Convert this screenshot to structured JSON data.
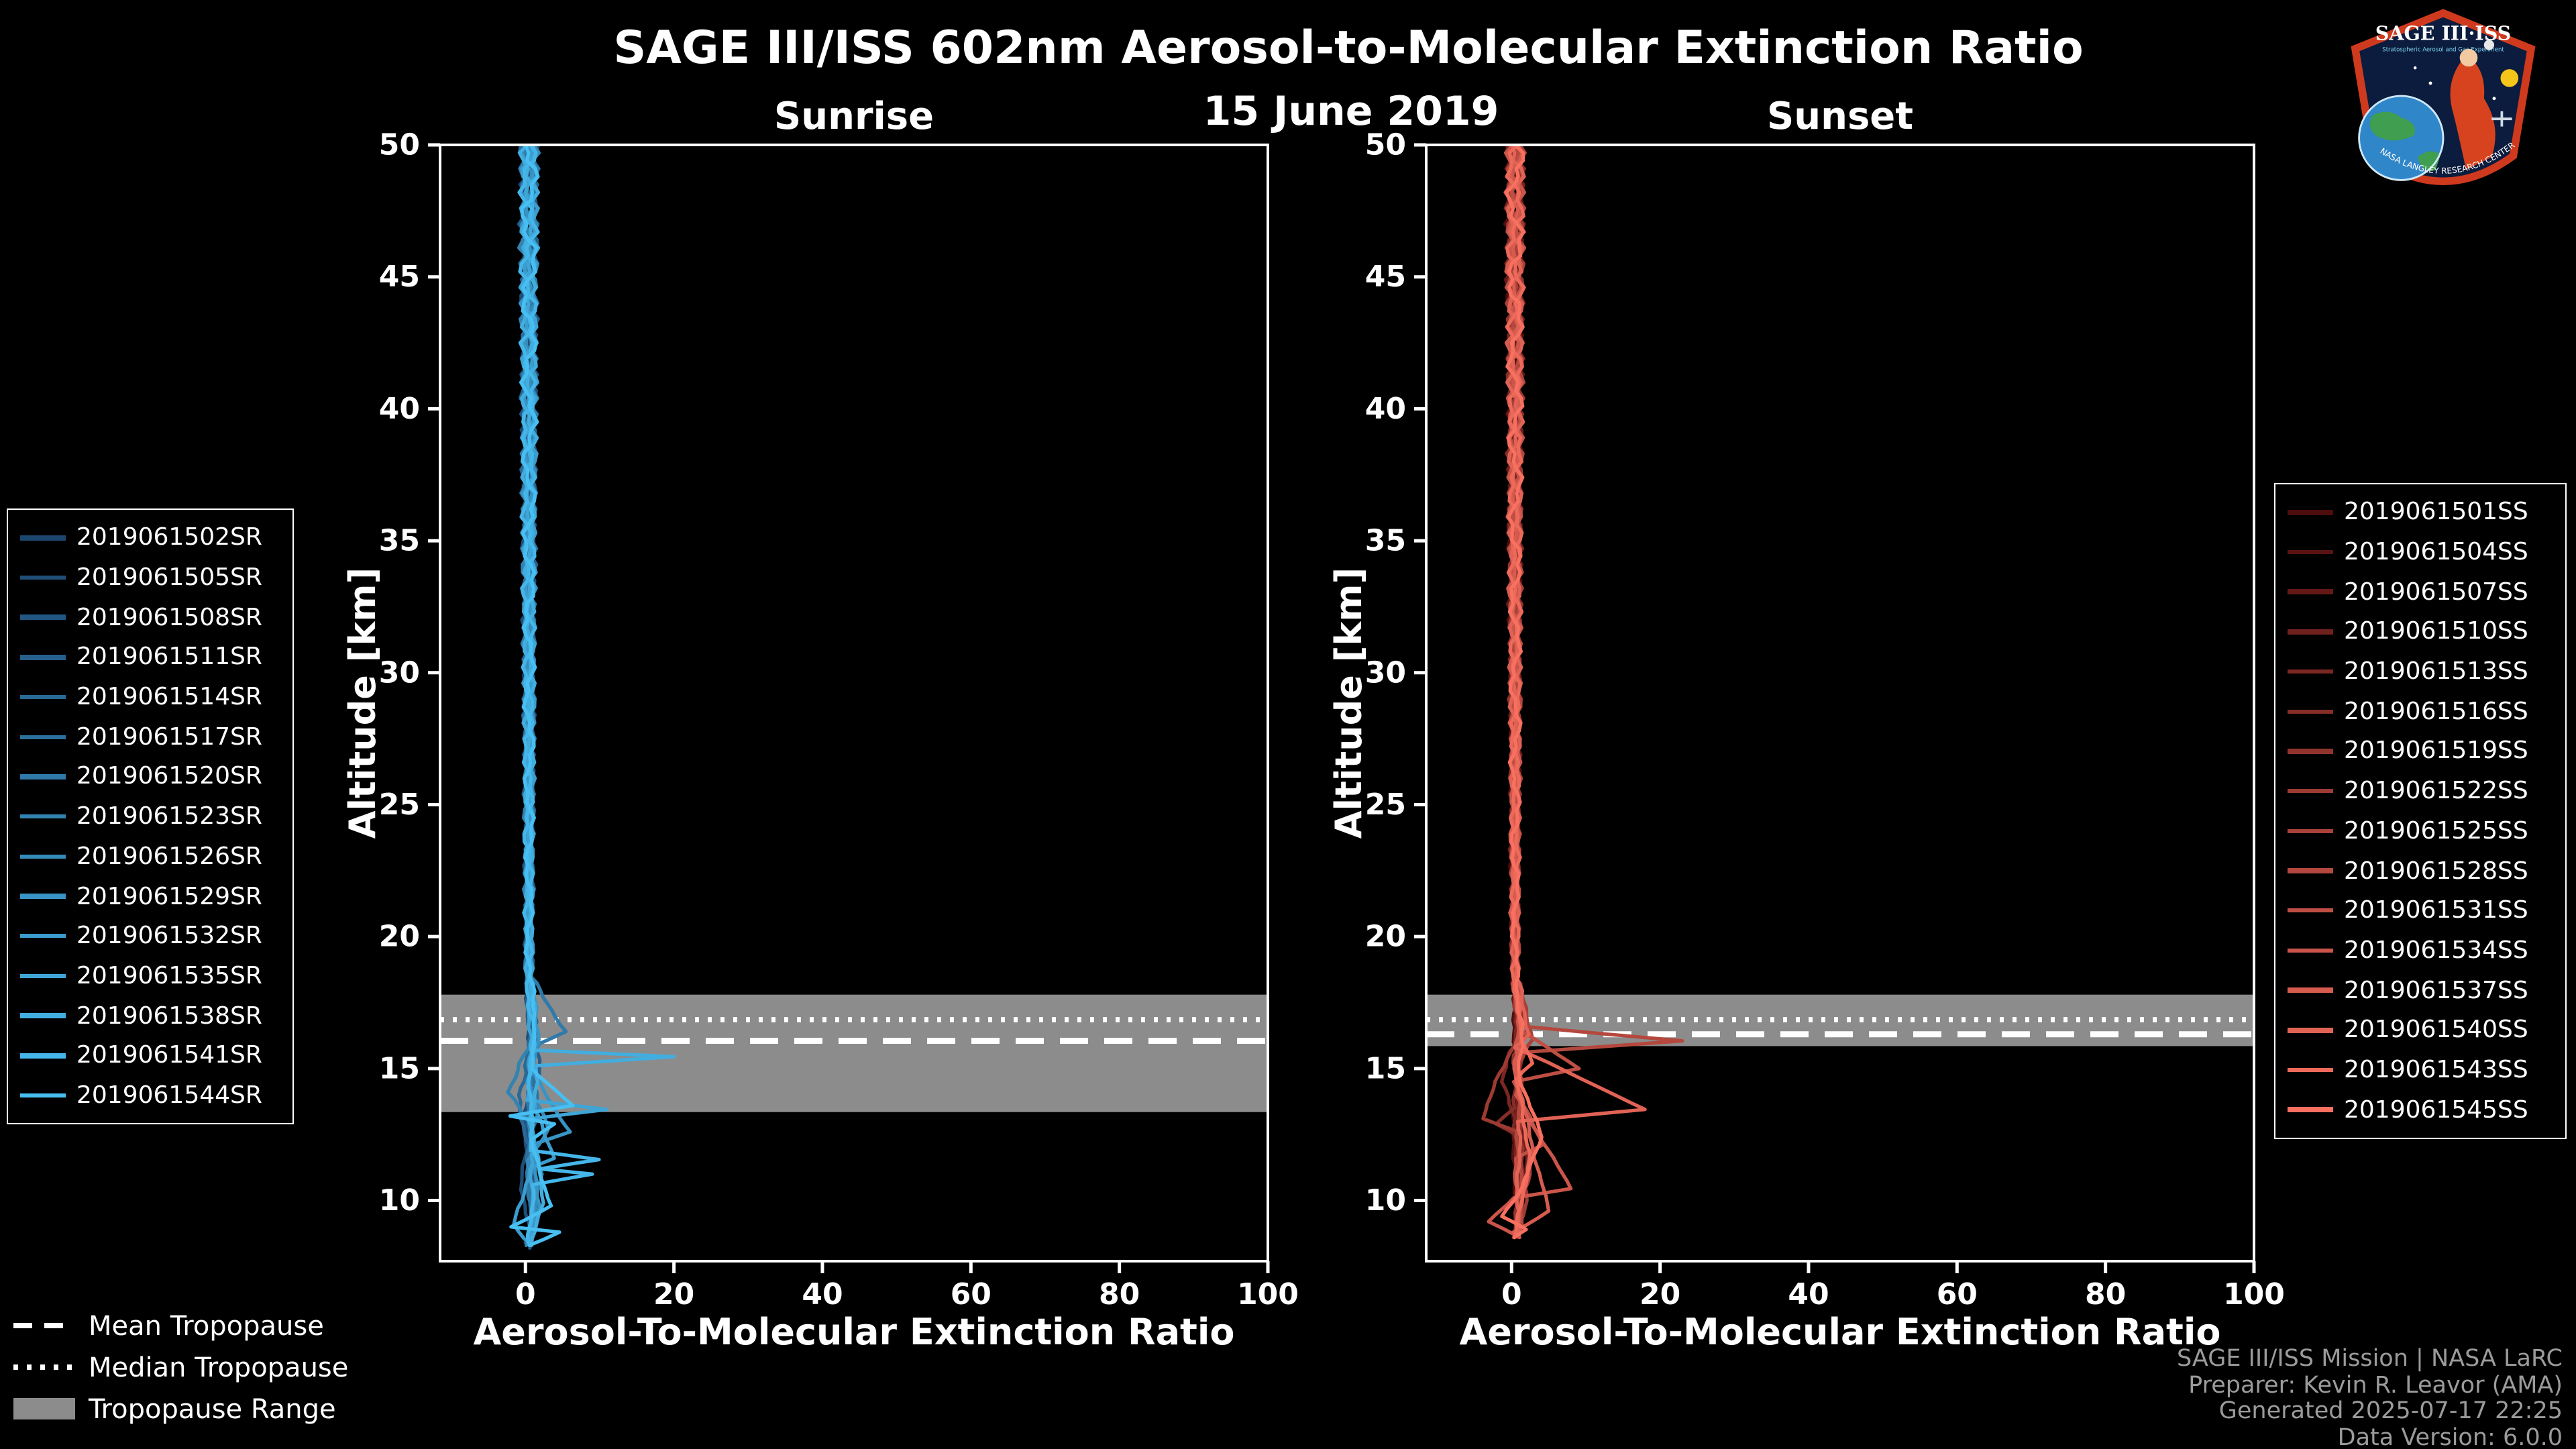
{
  "header": {
    "title": "SAGE III/ISS 602nm Aerosol-to-Molecular Extinction Ratio",
    "date": "15 June 2019"
  },
  "logo": {
    "title": "SAGE III·ISS",
    "subtitle": "Stratospheric Aerosol and Gas Experiment",
    "arc_text": "NASA LANGLEY RESEARCH CENTER"
  },
  "tropopause_legend": {
    "mean": "Mean Tropopause",
    "median": "Median Tropopause",
    "range": "Tropopause Range"
  },
  "credits": {
    "lines": [
      "SAGE III/ISS Mission | NASA LaRC",
      "Preparer: Kevin R. Leavor (AMA)",
      "Generated 2025-07-17 22:25",
      "Data Version: 6.0.0"
    ]
  },
  "chart_data": [
    {
      "type": "line",
      "title": "Sunrise",
      "xlabel": "Aerosol-To-Molecular Extinction Ratio",
      "ylabel": "Altitude [km]",
      "xlim": [
        -11.5,
        100
      ],
      "ylim": [
        7.7,
        50
      ],
      "xticks": [
        0,
        20,
        40,
        60,
        80,
        100
      ],
      "yticks": [
        10,
        15,
        20,
        25,
        30,
        35,
        40,
        45,
        50
      ],
      "grid": false,
      "legend_position": "outside-left",
      "tropopause": {
        "mean": 16.05,
        "median": 16.85,
        "range": [
          13.35,
          17.8
        ],
        "band_color": "#8c8c8c",
        "line_color": "#ffffff"
      },
      "series": [
        {
          "name": "2019061502SR",
          "color": "#1C4670",
          "base": 0.5,
          "points": [
            [
              0.6,
              16.0
            ],
            [
              0.4,
              12.0
            ],
            [
              0.8,
              8.4
            ]
          ]
        },
        {
          "name": "2019061505SR",
          "color": "#1F4F79",
          "base": 0.4,
          "points": [
            [
              0.8,
              15.0
            ],
            [
              -0.5,
              11.0
            ],
            [
              0.6,
              8.3
            ]
          ]
        },
        {
          "name": "2019061508SR",
          "color": "#225783",
          "base": 0.5,
          "points": [
            [
              1.2,
              16.5
            ],
            [
              0.3,
              13.0
            ],
            [
              1.5,
              9.0
            ],
            [
              0.5,
              8.2
            ]
          ]
        },
        {
          "name": "2019061511SR",
          "color": "#25608C",
          "base": 0.6,
          "points": [
            [
              0.5,
              17.0
            ],
            [
              2.0,
              14.8
            ],
            [
              0.5,
              13.5
            ],
            [
              1.0,
              10.0
            ],
            [
              0.2,
              8.4
            ]
          ]
        },
        {
          "name": "2019061514SR",
          "color": "#296995",
          "base": 0.4,
          "points": [
            [
              1.0,
              16.2
            ],
            [
              -1.0,
              14.0
            ],
            [
              0.5,
              12.0
            ],
            [
              2.0,
              9.5
            ],
            [
              0.4,
              8.3
            ]
          ]
        },
        {
          "name": "2019061517SR",
          "color": "#2C719E",
          "base": 0.5,
          "points": [
            [
              0.8,
              16.8
            ],
            [
              1.5,
              13.8
            ],
            [
              0.2,
              11.0
            ],
            [
              1.0,
              8.5
            ]
          ]
        },
        {
          "name": "2019061520SR",
          "color": "#2F7AA8",
          "base": 0.5,
          "points": [
            [
              5.5,
              16.4
            ],
            [
              0.8,
              15.8
            ],
            [
              0.4,
              12.0
            ],
            [
              0.8,
              8.4
            ]
          ]
        },
        {
          "name": "2019061523SR",
          "color": "#3283B1",
          "base": 0.4,
          "points": [
            [
              1.0,
              16.0
            ],
            [
              -2.5,
              14.1
            ],
            [
              0.5,
              13.0
            ],
            [
              2.0,
              11.0
            ],
            [
              0.5,
              8.3
            ]
          ]
        },
        {
          "name": "2019061526SR",
          "color": "#358BBA",
          "base": 0.5,
          "points": [
            [
              1.5,
              15.9
            ],
            [
              0.6,
              14.5
            ],
            [
              3.0,
              12.7
            ],
            [
              0.5,
              11.5
            ],
            [
              1.5,
              9.2
            ],
            [
              0.3,
              8.3
            ]
          ]
        },
        {
          "name": "2019061529SR",
          "color": "#3894C4",
          "base": 0.5,
          "points": [
            [
              2.0,
              16.1
            ],
            [
              0.5,
              15.0
            ],
            [
              6.0,
              12.6
            ],
            [
              0.8,
              12.1
            ],
            [
              2.0,
              9.7
            ],
            [
              0.2,
              8.4
            ]
          ]
        },
        {
          "name": "2019061532SR",
          "color": "#3B9CCD",
          "base": 0.6,
          "points": [
            [
              1.0,
              16.3
            ],
            [
              0.5,
              14.0
            ],
            [
              4.0,
              11.6
            ],
            [
              0.5,
              11.2
            ],
            [
              -1.5,
              9.1
            ],
            [
              0.8,
              8.3
            ]
          ]
        },
        {
          "name": "2019061535SR",
          "color": "#3FA5D6",
          "base": 0.5,
          "points": [
            [
              0.8,
              16.0
            ],
            [
              0.6,
              13.8
            ],
            [
              11.0,
              13.45
            ],
            [
              0.8,
              13.1
            ],
            [
              1.0,
              10.0
            ],
            [
              0.4,
              8.4
            ]
          ]
        },
        {
          "name": "2019061538SR",
          "color": "#42AEDF",
          "base": 0.5,
          "points": [
            [
              1.2,
              16.4
            ],
            [
              1.0,
              15.7
            ],
            [
              20.0,
              15.45
            ],
            [
              1.5,
              15.1
            ],
            [
              0.8,
              13.0
            ],
            [
              2.5,
              9.9
            ],
            [
              0.5,
              8.3
            ]
          ]
        },
        {
          "name": "2019061541SR",
          "color": "#45B6E9",
          "base": 0.4,
          "points": [
            [
              1.0,
              16.2
            ],
            [
              0.6,
              14.0
            ],
            [
              0.8,
              11.9
            ],
            [
              10.0,
              11.55
            ],
            [
              2.0,
              11.2
            ],
            [
              9.0,
              11.0
            ],
            [
              1.0,
              10.6
            ],
            [
              0.5,
              8.4
            ]
          ]
        },
        {
          "name": "2019061544SR",
          "color": "#48BFF2",
          "base": 0.5,
          "points": [
            [
              1.5,
              16.5
            ],
            [
              0.5,
              15.0
            ],
            [
              6.5,
              13.6
            ],
            [
              -2.0,
              13.2
            ],
            [
              4.0,
              12.9
            ],
            [
              0.5,
              12.3
            ],
            [
              3.5,
              9.8
            ],
            [
              -2.0,
              9.0
            ],
            [
              4.5,
              8.8
            ],
            [
              0.5,
              8.3
            ]
          ]
        }
      ]
    },
    {
      "type": "line",
      "title": "Sunset",
      "xlabel": "Aerosol-To-Molecular Extinction Ratio",
      "ylabel": "Altitude [km]",
      "xlim": [
        -11.5,
        100
      ],
      "ylim": [
        7.7,
        50
      ],
      "xticks": [
        0,
        20,
        40,
        60,
        80,
        100
      ],
      "yticks": [
        10,
        15,
        20,
        25,
        30,
        35,
        40,
        45,
        50
      ],
      "grid": false,
      "legend_position": "outside-right",
      "tropopause": {
        "mean": 16.3,
        "median": 16.85,
        "range": [
          15.85,
          17.8
        ],
        "band_color": "#8c8c8c",
        "line_color": "#ffffff"
      },
      "series": [
        {
          "name": "2019061501SS",
          "color": "#4E0C0C",
          "base": 0.4,
          "points": [
            [
              0.6,
              16.0
            ],
            [
              0.5,
              12.0
            ],
            [
              0.8,
              8.6
            ]
          ]
        },
        {
          "name": "2019061504SS",
          "color": "#591312",
          "base": 0.5,
          "points": [
            [
              1.0,
              15.5
            ],
            [
              0.3,
              11.0
            ],
            [
              1.2,
              8.8
            ]
          ]
        },
        {
          "name": "2019061507SS",
          "color": "#651917",
          "base": 0.4,
          "points": [
            [
              0.8,
              16.5
            ],
            [
              1.5,
              13.0
            ],
            [
              0.5,
              10.0
            ],
            [
              0.8,
              8.6
            ]
          ]
        },
        {
          "name": "2019061510SS",
          "color": "#70201D",
          "base": 0.5,
          "points": [
            [
              1.5,
              16.8
            ],
            [
              0.5,
              14.0
            ],
            [
              2.0,
              11.5
            ],
            [
              0.4,
              8.7
            ]
          ]
        },
        {
          "name": "2019061513SS",
          "color": "#7B2722",
          "base": 0.5,
          "points": [
            [
              0.8,
              17.0
            ],
            [
              -1.0,
              14.5
            ],
            [
              0.8,
              12.0
            ],
            [
              1.5,
              9.5
            ],
            [
              0.5,
              8.6
            ]
          ]
        },
        {
          "name": "2019061516SS",
          "color": "#872D28",
          "base": 0.4,
          "points": [
            [
              1.2,
              16.2
            ],
            [
              0.5,
              13.5
            ],
            [
              -2.0,
              12.9
            ],
            [
              0.8,
              12.4
            ],
            [
              1.0,
              8.8
            ]
          ]
        },
        {
          "name": "2019061519SS",
          "color": "#92342E",
          "base": 0.5,
          "points": [
            [
              2.0,
              16.3
            ],
            [
              0.5,
              15.5
            ],
            [
              1.5,
              12.0
            ],
            [
              0.5,
              8.7
            ]
          ]
        },
        {
          "name": "2019061522SS",
          "color": "#9D3B33",
          "base": 0.5,
          "points": [
            [
              1.0,
              16.5
            ],
            [
              -4.0,
              13.1
            ],
            [
              0.8,
              12.6
            ],
            [
              2.0,
              10.0
            ],
            [
              0.5,
              8.6
            ]
          ]
        },
        {
          "name": "2019061525SS",
          "color": "#A94139",
          "base": 0.5,
          "points": [
            [
              3.0,
              16.1
            ],
            [
              0.8,
              15.2
            ],
            [
              2.5,
              11.0
            ],
            [
              0.3,
              8.7
            ]
          ]
        },
        {
          "name": "2019061528SS",
          "color": "#B4483E",
          "base": 0.6,
          "points": [
            [
              1.0,
              16.6
            ],
            [
              23.0,
              16.05
            ],
            [
              1.0,
              15.6
            ],
            [
              0.8,
              13.0
            ],
            [
              1.5,
              9.0
            ],
            [
              0.5,
              8.6
            ]
          ]
        },
        {
          "name": "2019061531SS",
          "color": "#BF4F44",
          "base": 0.5,
          "points": [
            [
              1.5,
              16.4
            ],
            [
              9.0,
              15.0
            ],
            [
              0.5,
              14.5
            ],
            [
              4.0,
              12.1
            ],
            [
              0.6,
              11.6
            ],
            [
              1.0,
              8.7
            ]
          ]
        },
        {
          "name": "2019061534SS",
          "color": "#CB554A",
          "base": 0.5,
          "points": [
            [
              1.0,
              16.2
            ],
            [
              0.5,
              14.0
            ],
            [
              8.0,
              10.45
            ],
            [
              0.5,
              10.1
            ],
            [
              -3.0,
              9.2
            ],
            [
              1.0,
              8.6
            ]
          ]
        },
        {
          "name": "2019061537SS",
          "color": "#D65C4F",
          "base": 0.4,
          "points": [
            [
              1.2,
              16.6
            ],
            [
              0.5,
              15.0
            ],
            [
              2.0,
              13.0
            ],
            [
              5.0,
              9.6
            ],
            [
              0.5,
              8.8
            ]
          ]
        },
        {
          "name": "2019061540SS",
          "color": "#E16355",
          "base": 0.5,
          "points": [
            [
              2.5,
              16.3
            ],
            [
              0.5,
              15.8
            ],
            [
              18.0,
              13.45
            ],
            [
              1.0,
              13.0
            ],
            [
              0.8,
              8.7
            ]
          ]
        },
        {
          "name": "2019061543SS",
          "color": "#ED695A",
          "base": 0.5,
          "points": [
            [
              1.0,
              16.4
            ],
            [
              3.0,
              15.2
            ],
            [
              0.5,
              14.6
            ],
            [
              2.5,
              11.8
            ],
            [
              0.5,
              8.6
            ]
          ]
        },
        {
          "name": "2019061545SS",
          "color": "#F87060",
          "base": 0.5,
          "points": [
            [
              1.5,
              16.7
            ],
            [
              0.8,
              15.0
            ],
            [
              4.0,
              12.4
            ],
            [
              1.5,
              10.5
            ],
            [
              -1.5,
              9.4
            ],
            [
              2.0,
              8.9
            ],
            [
              0.5,
              8.6
            ]
          ]
        }
      ]
    }
  ]
}
